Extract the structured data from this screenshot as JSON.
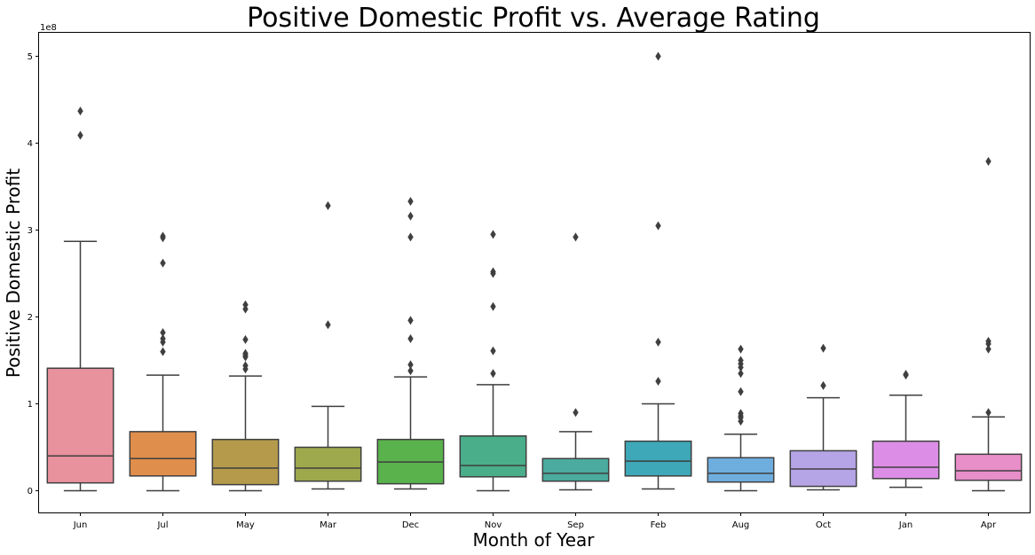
{
  "chart_data": {
    "type": "box",
    "title": "Positive Domestic Profit vs. Average Rating",
    "xlabel": "Month of Year",
    "ylabel": "Positive Domestic Profit",
    "y_offset_label": "1e8",
    "y_scale": 100000000,
    "ylim": [
      -0.25,
      5.27
    ],
    "yticks": [
      0,
      1,
      2,
      3,
      4,
      5
    ],
    "ytick_labels": [
      "0",
      "1",
      "2",
      "3",
      "4",
      "5"
    ],
    "grid": false,
    "categories": [
      "Jun",
      "Jul",
      "May",
      "Mar",
      "Dec",
      "Nov",
      "Sep",
      "Feb",
      "Aug",
      "Oct",
      "Jan",
      "Apr"
    ],
    "boxes": [
      {
        "category": "Jun",
        "color": "#e8929e",
        "whisker_low": 0.0,
        "q1": 0.09,
        "median": 0.4,
        "q3": 1.41,
        "whisker_high": 2.87,
        "outliers": [
          4.37,
          4.09
        ]
      },
      {
        "category": "Jul",
        "color": "#e08e4c",
        "whisker_low": 0.0,
        "q1": 0.17,
        "median": 0.37,
        "q3": 0.68,
        "whisker_high": 1.33,
        "outliers": [
          2.93,
          2.91,
          2.62,
          1.82,
          1.75,
          1.71,
          1.6
        ]
      },
      {
        "category": "May",
        "color": "#b59a4c",
        "whisker_low": 0.0,
        "q1": 0.07,
        "median": 0.26,
        "q3": 0.59,
        "whisker_high": 1.32,
        "outliers": [
          2.14,
          2.09,
          1.74,
          1.58,
          1.56,
          1.54,
          1.44,
          1.4
        ]
      },
      {
        "category": "Mar",
        "color": "#9ea94d",
        "whisker_low": 0.02,
        "q1": 0.11,
        "median": 0.26,
        "q3": 0.5,
        "whisker_high": 0.97,
        "outliers": [
          3.28,
          1.91
        ]
      },
      {
        "category": "Dec",
        "color": "#59b24c",
        "whisker_low": 0.02,
        "q1": 0.08,
        "median": 0.33,
        "q3": 0.59,
        "whisker_high": 1.31,
        "outliers": [
          3.33,
          3.16,
          2.92,
          1.96,
          1.75,
          1.45,
          1.38
        ]
      },
      {
        "category": "Nov",
        "color": "#4aae8a",
        "whisker_low": 0.0,
        "q1": 0.16,
        "median": 0.29,
        "q3": 0.63,
        "whisker_high": 1.22,
        "outliers": [
          2.95,
          2.52,
          2.5,
          2.12,
          1.61,
          1.35
        ]
      },
      {
        "category": "Sep",
        "color": "#4aab9e",
        "whisker_low": 0.01,
        "q1": 0.11,
        "median": 0.2,
        "q3": 0.37,
        "whisker_high": 0.68,
        "outliers": [
          2.92,
          0.9
        ]
      },
      {
        "category": "Feb",
        "color": "#3ea8b8",
        "whisker_low": 0.02,
        "q1": 0.17,
        "median": 0.34,
        "q3": 0.57,
        "whisker_high": 1.0,
        "outliers": [
          5.0,
          3.05,
          1.71,
          1.26
        ]
      },
      {
        "category": "Aug",
        "color": "#6eaede",
        "whisker_low": 0.0,
        "q1": 0.1,
        "median": 0.2,
        "q3": 0.38,
        "whisker_high": 0.65,
        "outliers": [
          1.63,
          1.5,
          1.46,
          1.42,
          1.35,
          1.14,
          0.89,
          0.86,
          0.84,
          0.8
        ]
      },
      {
        "category": "Oct",
        "color": "#b5a4e6",
        "whisker_low": 0.01,
        "q1": 0.05,
        "median": 0.25,
        "q3": 0.46,
        "whisker_high": 1.07,
        "outliers": [
          1.64,
          1.21
        ]
      },
      {
        "category": "Jan",
        "color": "#dc8ee6",
        "whisker_low": 0.04,
        "q1": 0.14,
        "median": 0.27,
        "q3": 0.57,
        "whisker_high": 1.1,
        "outliers": [
          1.34,
          1.33
        ]
      },
      {
        "category": "Apr",
        "color": "#e88ec8",
        "whisker_low": 0.0,
        "q1": 0.12,
        "median": 0.23,
        "q3": 0.42,
        "whisker_high": 0.85,
        "outliers": [
          3.79,
          1.72,
          1.69,
          1.63,
          0.9
        ]
      }
    ]
  }
}
